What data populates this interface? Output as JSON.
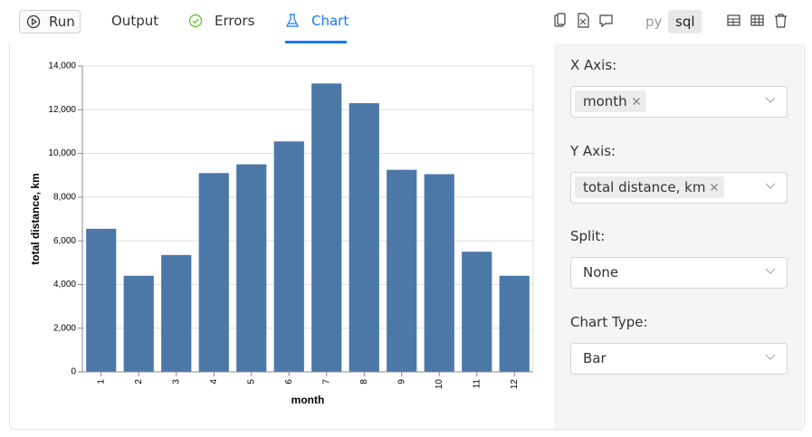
{
  "toolbar": {
    "run": "Run",
    "tabs": [
      "Output",
      "Errors",
      "Chart"
    ],
    "languages": [
      "py",
      "sql"
    ]
  },
  "chart_data": {
    "type": "bar",
    "x_label": "month",
    "y_label": "total distance, km",
    "categories": [
      "1",
      "2",
      "3",
      "4",
      "5",
      "6",
      "7",
      "8",
      "9",
      "10",
      "11",
      "12"
    ],
    "values": [
      6550,
      4400,
      5350,
      9100,
      9500,
      10550,
      13200,
      12300,
      9250,
      9050,
      5500,
      4400
    ],
    "color": "#4c78a8",
    "ylim": [
      0,
      14000
    ],
    "yticks": [
      0,
      {
        "value": 2000,
        "label": "2,000"
      },
      {
        "value": 4000,
        "label": "4,000"
      },
      {
        "value": 6000,
        "label": "6,000"
      },
      {
        "value": 8000,
        "label": "8,000"
      },
      {
        "value": 10000,
        "label": "10,000"
      },
      {
        "value": 12000,
        "label": "12,000"
      },
      {
        "value": 14000,
        "label": "14,000"
      }
    ],
    "grid": true
  },
  "settings": {
    "fields": [
      {
        "label": "X Axis:",
        "value": "month"
      },
      {
        "label": "Y Axis:",
        "value": "total distance, km"
      },
      {
        "label": "Split:",
        "value": "None"
      },
      {
        "label": "Chart Type:",
        "value": "Bar"
      }
    ]
  }
}
